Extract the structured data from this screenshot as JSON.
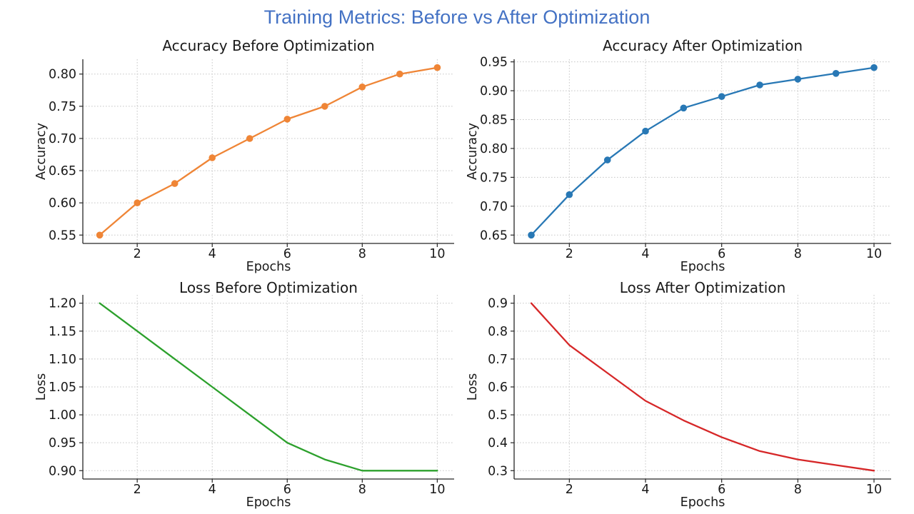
{
  "figure": {
    "title": "Training Metrics: Before vs After Optimization",
    "title_color": "#4472C4",
    "background_color": "#FFFFFF",
    "text_color": "#1A1A1A",
    "grid_color": "#C8C8C8"
  },
  "chart_data": [
    {
      "id": "accuracy-before",
      "type": "line",
      "title": "Accuracy Before Optimization",
      "xlabel": "Epochs",
      "ylabel": "Accuracy",
      "x": [
        1,
        2,
        3,
        4,
        5,
        6,
        7,
        8,
        9,
        10
      ],
      "values": [
        0.55,
        0.6,
        0.63,
        0.67,
        0.7,
        0.73,
        0.75,
        0.78,
        0.8,
        0.81
      ],
      "color": "#EF8536",
      "markers": true,
      "grid": true,
      "legend": "none",
      "xlim": [
        0.55,
        10.45
      ],
      "ylim": [
        0.537,
        0.823
      ],
      "xticks": [
        2,
        4,
        6,
        8,
        10
      ],
      "xtick_labels": [
        "2",
        "4",
        "6",
        "8",
        "10"
      ],
      "yticks": [
        0.55,
        0.6,
        0.65,
        0.7,
        0.75,
        0.8
      ],
      "ytick_labels": [
        "0.55",
        "0.60",
        "0.65",
        "0.70",
        "0.75",
        "0.80"
      ]
    },
    {
      "id": "accuracy-after",
      "type": "line",
      "title": "Accuracy After Optimization",
      "xlabel": "Epochs",
      "ylabel": "Accuracy",
      "x": [
        1,
        2,
        3,
        4,
        5,
        6,
        7,
        8,
        9,
        10
      ],
      "values": [
        0.65,
        0.72,
        0.78,
        0.83,
        0.87,
        0.89,
        0.91,
        0.92,
        0.93,
        0.94
      ],
      "color": "#2878B5",
      "markers": true,
      "grid": true,
      "legend": "none",
      "xlim": [
        0.55,
        10.45
      ],
      "ylim": [
        0.6355,
        0.9545
      ],
      "xticks": [
        2,
        4,
        6,
        8,
        10
      ],
      "xtick_labels": [
        "2",
        "4",
        "6",
        "8",
        "10"
      ],
      "yticks": [
        0.65,
        0.7,
        0.75,
        0.8,
        0.85,
        0.9,
        0.95
      ],
      "ytick_labels": [
        "0.65",
        "0.70",
        "0.75",
        "0.80",
        "0.85",
        "0.90",
        "0.95"
      ]
    },
    {
      "id": "loss-before",
      "type": "line",
      "title": "Loss Before Optimization",
      "xlabel": "Epochs",
      "ylabel": "Loss",
      "x": [
        1,
        2,
        3,
        4,
        5,
        6,
        7,
        8,
        9,
        10
      ],
      "values": [
        1.2,
        1.15,
        1.1,
        1.05,
        1.0,
        0.95,
        0.92,
        0.9,
        0.9,
        0.9
      ],
      "color": "#2CA02C",
      "markers": false,
      "grid": true,
      "legend": "none",
      "xlim": [
        0.55,
        10.45
      ],
      "ylim": [
        0.885,
        1.215
      ],
      "xticks": [
        2,
        4,
        6,
        8,
        10
      ],
      "xtick_labels": [
        "2",
        "4",
        "6",
        "8",
        "10"
      ],
      "yticks": [
        0.9,
        0.95,
        1.0,
        1.05,
        1.1,
        1.15,
        1.2
      ],
      "ytick_labels": [
        "0.90",
        "0.95",
        "1.00",
        "1.05",
        "1.10",
        "1.15",
        "1.20"
      ]
    },
    {
      "id": "loss-after",
      "type": "line",
      "title": "Loss After Optimization",
      "xlabel": "Epochs",
      "ylabel": "Loss",
      "x": [
        1,
        2,
        3,
        4,
        5,
        6,
        7,
        8,
        9,
        10
      ],
      "values": [
        0.9,
        0.75,
        0.65,
        0.55,
        0.48,
        0.42,
        0.37,
        0.34,
        0.32,
        0.3
      ],
      "color": "#D62728",
      "markers": false,
      "grid": true,
      "legend": "none",
      "xlim": [
        0.55,
        10.45
      ],
      "ylim": [
        0.27,
        0.93
      ],
      "xticks": [
        2,
        4,
        6,
        8,
        10
      ],
      "xtick_labels": [
        "2",
        "4",
        "6",
        "8",
        "10"
      ],
      "yticks": [
        0.3,
        0.4,
        0.5,
        0.6,
        0.7,
        0.8,
        0.9
      ],
      "ytick_labels": [
        "0.3",
        "0.4",
        "0.5",
        "0.6",
        "0.7",
        "0.8",
        "0.9"
      ]
    }
  ]
}
